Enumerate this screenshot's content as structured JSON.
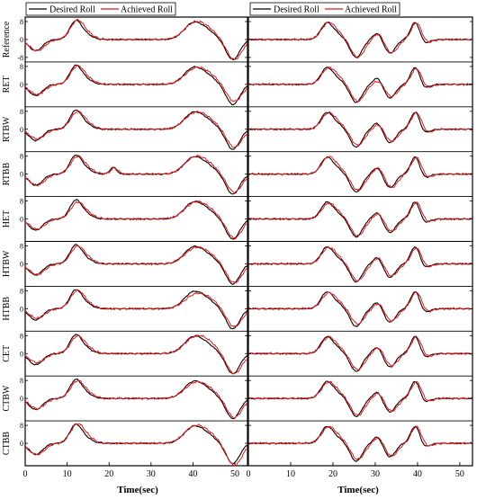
{
  "colors": {
    "desired": "#000000",
    "achieved": "#e0191b",
    "axis": "#000000"
  },
  "legend": {
    "desired": "Desired Roll",
    "achieved": "Achieved Roll"
  },
  "chart_data": {
    "type": "line",
    "rows": [
      "Reference",
      "RET",
      "RTBW",
      "RTBB",
      "HET",
      "HTBW",
      "HTBB",
      "CET",
      "CTBW",
      "CTBB"
    ],
    "xlabel": "Time(sec)",
    "xlim": [
      0,
      53
    ],
    "ylim": [
      -10,
      10
    ],
    "xticks": [
      0,
      10,
      20,
      30,
      40,
      50
    ],
    "yticks_top_row": [
      -8,
      0,
      8
    ],
    "yticks_other_rows": [
      0,
      8
    ],
    "series_names": [
      "Desired Roll",
      "Achieved Roll"
    ],
    "panels": [
      {
        "column": "left",
        "desired_events": [
          {
            "t": 2.5,
            "a": -5,
            "w": 1.6
          },
          {
            "t": 12,
            "a": 8,
            "w": 1.4
          },
          {
            "t": 14.5,
            "a": 2,
            "w": 1.5
          },
          {
            "t": 40,
            "a": 7,
            "w": 2.2
          },
          {
            "t": 43.5,
            "a": 3,
            "w": 2.0
          },
          {
            "t": 49.5,
            "a": -9,
            "w": 1.6
          }
        ],
        "rows": [
          {
            "row": "Reference",
            "extra": [],
            "k": [
              1.0,
              1.0,
              1.0,
              1.0,
              1.0,
              1.0
            ]
          },
          {
            "row": "RET",
            "extra": [],
            "k": [
              0.9,
              0.95,
              1.0,
              0.9,
              1.1,
              0.85
            ]
          },
          {
            "row": "RTBW",
            "extra": [],
            "k": [
              0.85,
              0.9,
              1.0,
              0.95,
              1.0,
              0.9
            ]
          },
          {
            "row": "RTBB",
            "extra": [
              {
                "t": 21,
                "a": 3,
                "w": 0.8
              }
            ],
            "k": [
              1.0,
              0.9,
              1.0,
              1.0,
              1.0,
              0.9
            ]
          },
          {
            "row": "HET",
            "extra": [],
            "k": [
              0.9,
              0.85,
              1.0,
              0.95,
              1.0,
              0.95
            ]
          },
          {
            "row": "HTBW",
            "extra": [],
            "k": [
              0.95,
              0.9,
              1.0,
              0.9,
              1.0,
              0.95
            ]
          },
          {
            "row": "HTBB",
            "extra": [],
            "k": [
              0.85,
              0.95,
              0.9,
              0.8,
              1.1,
              0.9
            ]
          },
          {
            "row": "CET",
            "extra": [],
            "k": [
              0.8,
              0.9,
              1.0,
              0.95,
              1.2,
              1.0
            ]
          },
          {
            "row": "CTBW",
            "extra": [],
            "k": [
              0.9,
              0.9,
              1.0,
              0.9,
              1.0,
              0.95
            ]
          },
          {
            "row": "CTBB",
            "extra": [],
            "k": [
              1.0,
              1.0,
              1.1,
              1.0,
              1.0,
              1.1
            ]
          }
        ]
      },
      {
        "column": "right",
        "desired_events": [
          {
            "t": 18.5,
            "a": 7,
            "w": 1.4
          },
          {
            "t": 21,
            "a": 2,
            "w": 1.5
          },
          {
            "t": 25.5,
            "a": -8,
            "w": 1.4
          },
          {
            "t": 30.5,
            "a": 3,
            "w": 1.0
          },
          {
            "t": 33.5,
            "a": -6,
            "w": 1.3
          },
          {
            "t": 39.5,
            "a": 8,
            "w": 1.1
          },
          {
            "t": 41.5,
            "a": -2,
            "w": 1.2
          }
        ],
        "rows": [
          {
            "row": "Reference",
            "extra": [],
            "k": [
              1.0,
              1.0,
              1.0,
              1.0,
              1.0,
              1.0,
              1.0
            ]
          },
          {
            "row": "RET",
            "extra": [],
            "k": [
              0.95,
              1.2,
              0.95,
              0.6,
              0.9,
              0.95,
              1.0
            ]
          },
          {
            "row": "RTBW",
            "extra": [],
            "k": [
              0.95,
              1.0,
              0.9,
              0.8,
              0.9,
              1.0,
              1.0
            ]
          },
          {
            "row": "RTBB",
            "extra": [],
            "k": [
              1.0,
              1.1,
              0.9,
              1.1,
              1.0,
              1.0,
              1.0
            ]
          },
          {
            "row": "HET",
            "extra": [],
            "k": [
              0.9,
              1.0,
              0.95,
              0.9,
              0.9,
              1.0,
              1.0
            ]
          },
          {
            "row": "HTBW",
            "extra": [],
            "k": [
              0.95,
              1.0,
              0.95,
              1.0,
              0.9,
              0.95,
              1.0
            ]
          },
          {
            "row": "HTBB",
            "extra": [],
            "k": [
              0.9,
              1.1,
              0.85,
              0.9,
              0.9,
              1.0,
              1.0
            ]
          },
          {
            "row": "CET",
            "extra": [],
            "k": [
              0.95,
              1.0,
              0.9,
              1.0,
              0.9,
              1.0,
              1.0
            ]
          },
          {
            "row": "CTBW",
            "extra": [],
            "k": [
              0.95,
              1.0,
              0.95,
              0.9,
              0.95,
              1.0,
              1.0
            ]
          },
          {
            "row": "CTBB",
            "extra": [],
            "k": [
              0.95,
              1.1,
              0.9,
              1.0,
              0.95,
              1.0,
              1.0
            ]
          }
        ]
      }
    ]
  }
}
